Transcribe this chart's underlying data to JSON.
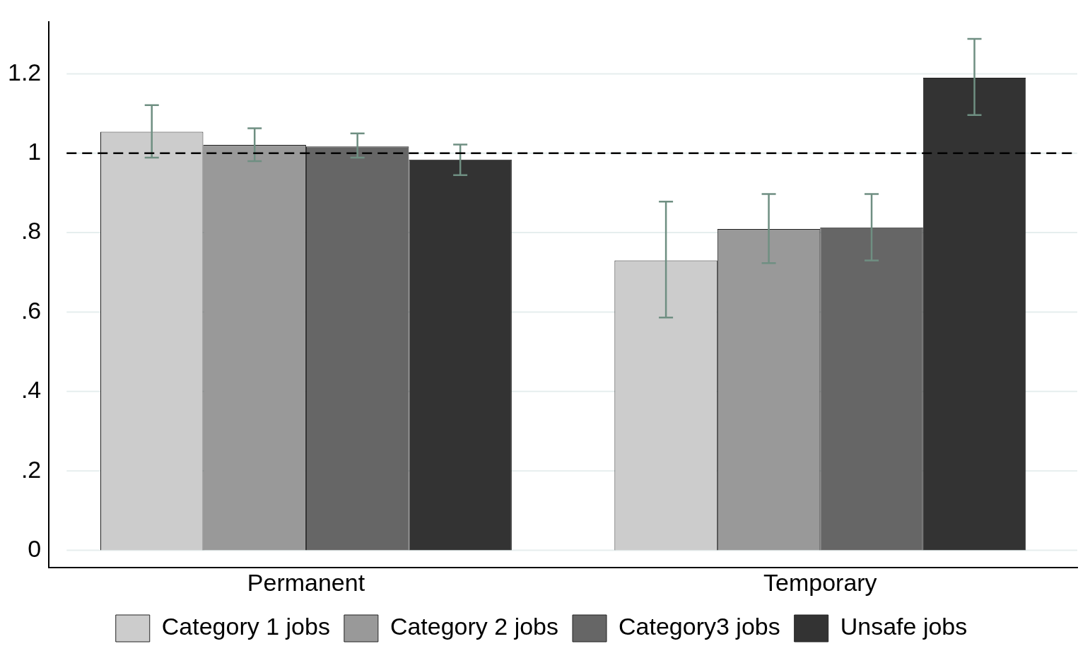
{
  "chart_data": {
    "type": "bar",
    "categories": [
      "Permanent",
      "Temporary"
    ],
    "series": [
      {
        "name": "Category 1 jobs",
        "color": "#cccccc",
        "values": [
          1.054,
          0.73
        ],
        "errors": [
          [
            0.989,
            1.121
          ],
          [
            0.586,
            0.878
          ]
        ]
      },
      {
        "name": "Category 2 jobs",
        "color": "#999999",
        "values": [
          1.021,
          0.809
        ],
        "errors": [
          [
            0.98,
            1.063
          ],
          [
            0.723,
            0.897
          ]
        ]
      },
      {
        "name": "Category3 jobs",
        "color": "#666666",
        "values": [
          1.017,
          0.813
        ],
        "errors": [
          [
            0.989,
            1.05
          ],
          [
            0.73,
            0.897
          ]
        ]
      },
      {
        "name": "Unsafe jobs",
        "color": "#333333",
        "values": [
          0.984,
          1.19
        ],
        "errors": [
          [
            0.945,
            1.022
          ],
          [
            1.096,
            1.288
          ]
        ]
      }
    ],
    "ylim": [
      -0.044,
      1.33
    ],
    "yticks": [
      {
        "value": 0,
        "label": "0"
      },
      {
        "value": 0.2,
        "label": ".2"
      },
      {
        "value": 0.4,
        "label": ".4"
      },
      {
        "value": 0.6,
        "label": ".6"
      },
      {
        "value": 0.8,
        "label": ".8"
      },
      {
        "value": 1,
        "label": "1"
      },
      {
        "value": 1.2,
        "label": "1.2"
      }
    ],
    "ref_lines": [
      {
        "axis": "y",
        "value": 1,
        "line_style": "dashed",
        "color": "#000000"
      }
    ],
    "grid": "y",
    "legend": "bottom"
  }
}
